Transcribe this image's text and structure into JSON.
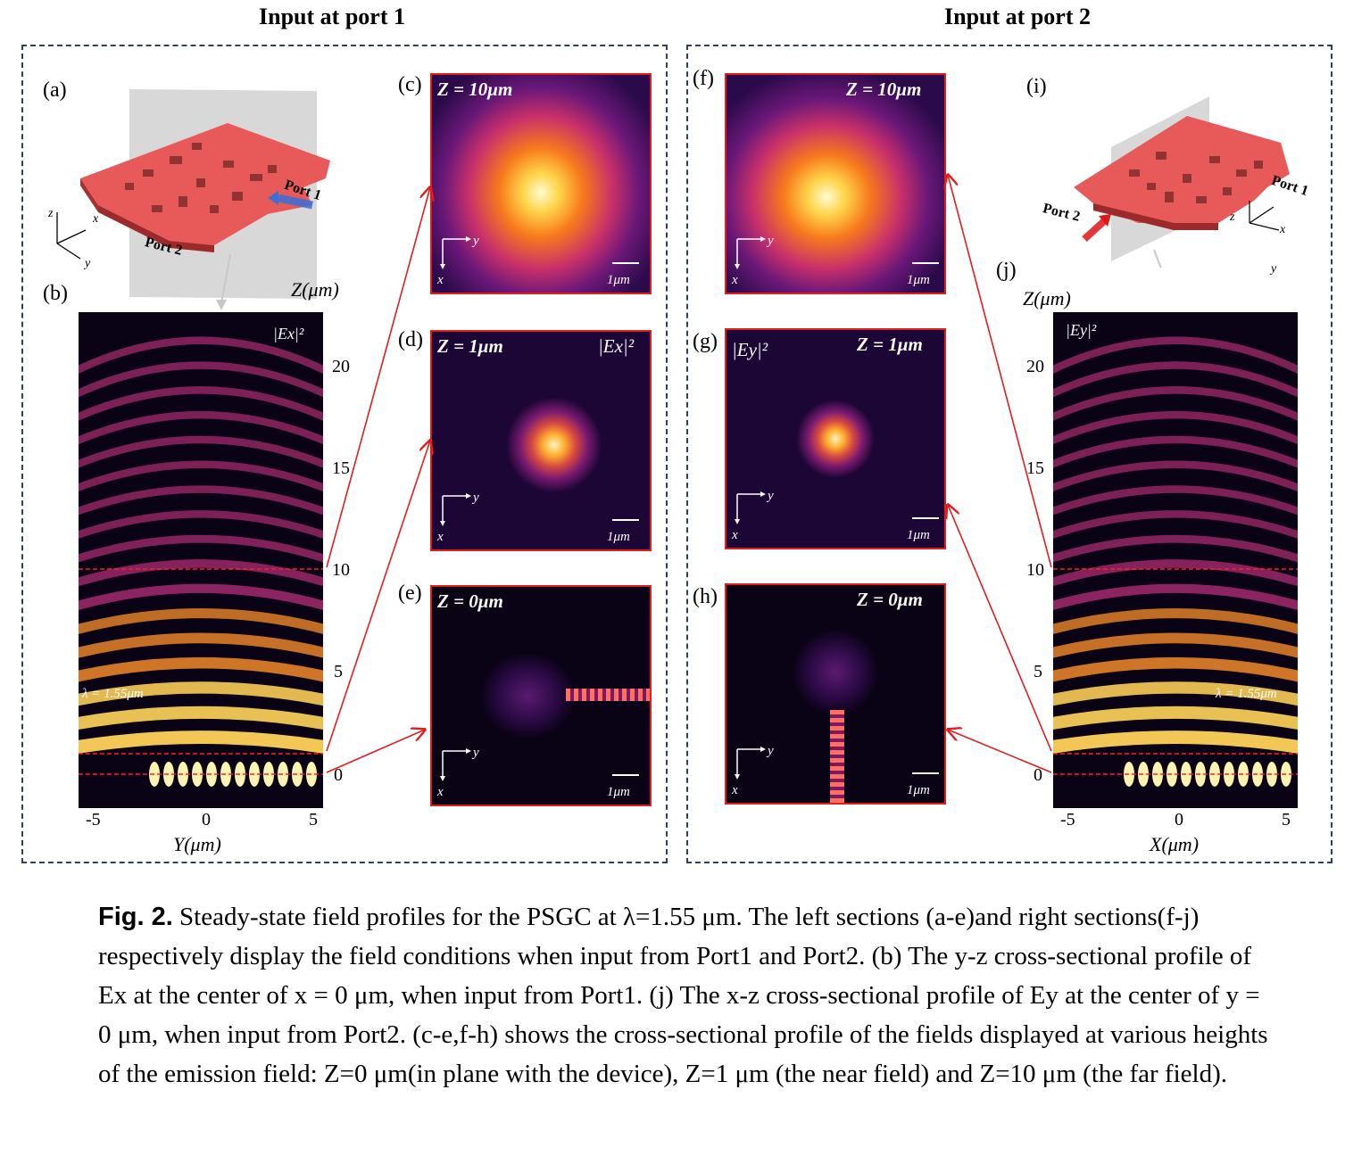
{
  "sections": {
    "left_title": "Input at port 1",
    "right_title": "Input at port 2"
  },
  "panel_labels": {
    "a": "(a)",
    "b": "(b)",
    "c": "(c)",
    "d": "(d)",
    "e": "(e)",
    "f": "(f)",
    "g": "(g)",
    "h": "(h)",
    "i": "(i)",
    "j": "(j)"
  },
  "heatmaps": {
    "c": {
      "z": "Z = 10μm",
      "field": ""
    },
    "d": {
      "z": "Z = 1μm",
      "field": "|Ex|²"
    },
    "e": {
      "z": "Z = 0μm",
      "field": ""
    },
    "f": {
      "z": "Z = 10μm",
      "field": ""
    },
    "g": {
      "z": "Z = 1μm",
      "field": "|Ey|²"
    },
    "h": {
      "z": "Z = 0μm",
      "field": ""
    }
  },
  "scale_label": "1μm",
  "axis_letters": {
    "y": "y",
    "x": "x",
    "z": "z"
  },
  "device": {
    "port1": "Port 1",
    "port2": "Port 2",
    "colors": {
      "device": "#e85a5a",
      "port1_arrow": "#3b6fd8",
      "port2_arrow": "#e01515"
    }
  },
  "cross_sections": {
    "left": {
      "field_label": "|Ex|²",
      "lambda_label": "λ = 1.55μm",
      "zlabel": "Z(μm)",
      "xlabel": "Y(μm)",
      "z_ticks": [
        "20",
        "15",
        "10",
        "5",
        "0"
      ],
      "x_ticks": [
        "-5",
        "0",
        "5"
      ]
    },
    "right": {
      "field_label": "|Ey|²",
      "lambda_label": "λ = 1.55μm",
      "zlabel": "Z(μm)",
      "xlabel": "X(μm)",
      "z_ticks": [
        "20",
        "15",
        "10",
        "5",
        "0"
      ],
      "x_ticks": [
        "-5",
        "0",
        "5"
      ]
    }
  },
  "chart_data": {
    "type": "heatmap",
    "wavelength_um": 1.55,
    "z_axis_um": [
      0,
      22
    ],
    "y_axis_um": [
      -6,
      6
    ],
    "marked_heights_um": [
      0,
      1,
      10
    ],
    "colormap": "inferno"
  },
  "caption": {
    "fig_no": "Fig. 2.",
    "text": " Steady-state field profiles for the PSGC at λ=1.55 μm.  The left sections (a-e)and right sections(f-j) respectively display the field conditions when input from Port1 and Port2. (b) The y-z cross-sectional profile of Ex at the center of x = 0 μm, when input from Port1. (j) The x-z cross-sectional profile of Ey at the center of y = 0 μm, when input from Port2. (c-e,f-h) shows the cross-sectional profile of the fields displayed at various heights of the emission field: Z=0 μm(in plane with the device), Z=1 μm (the near field) and Z=10 μm (the far field)."
  }
}
